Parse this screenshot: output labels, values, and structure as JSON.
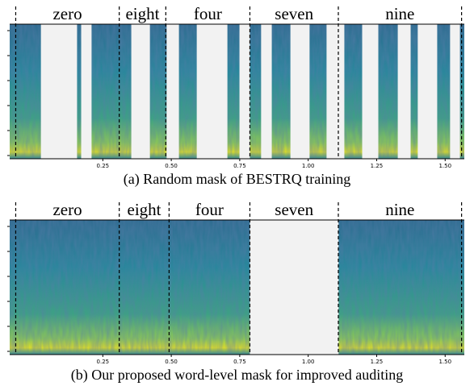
{
  "chart_data": [
    {
      "type": "spectrogram",
      "words": [
        "zero",
        "eight",
        "four",
        "seven",
        "nine"
      ],
      "boundaries": [
        -0.068,
        0.31,
        0.48,
        0.787,
        1.11,
        1.56
      ],
      "masks": [
        [
          0.024,
          0.156
        ],
        [
          0.171,
          0.209
        ],
        [
          0.354,
          0.422
        ],
        [
          0.483,
          0.528
        ],
        [
          0.593,
          0.705
        ],
        [
          0.749,
          0.787
        ],
        [
          0.828,
          0.867
        ],
        [
          0.935,
          1.005
        ],
        [
          1.067,
          1.132
        ],
        [
          1.197,
          1.256
        ],
        [
          1.327,
          1.374
        ],
        [
          1.4,
          1.471
        ],
        [
          1.518,
          1.554
        ]
      ],
      "xlim": [
        -0.09,
        1.57
      ],
      "xticks": [
        0.25,
        {
          "value": 0.5,
          "label": "0.50"
        },
        0.75,
        {
          "value": 1.0,
          "label": "1.00"
        },
        1.25,
        {
          "value": 1.5,
          "label": "1.50"
        }
      ],
      "caption": "(a) Random mask of BESTRQ training"
    },
    {
      "type": "spectrogram",
      "words": [
        "zero",
        "eight",
        "four",
        "seven",
        "nine"
      ],
      "boundaries": [
        -0.068,
        0.31,
        0.492,
        0.787,
        1.11,
        1.56
      ],
      "masks": [
        [
          0.787,
          1.111
        ]
      ],
      "xlim": [
        -0.09,
        1.57
      ],
      "xticks": [
        0.25,
        {
          "value": 0.5,
          "label": "0.50"
        },
        0.75,
        {
          "value": 1.0,
          "label": "1.00"
        },
        1.25,
        {
          "value": 1.5,
          "label": "1.50"
        }
      ],
      "caption": "(b) Our proposed word-level mask for improved auditing"
    }
  ]
}
